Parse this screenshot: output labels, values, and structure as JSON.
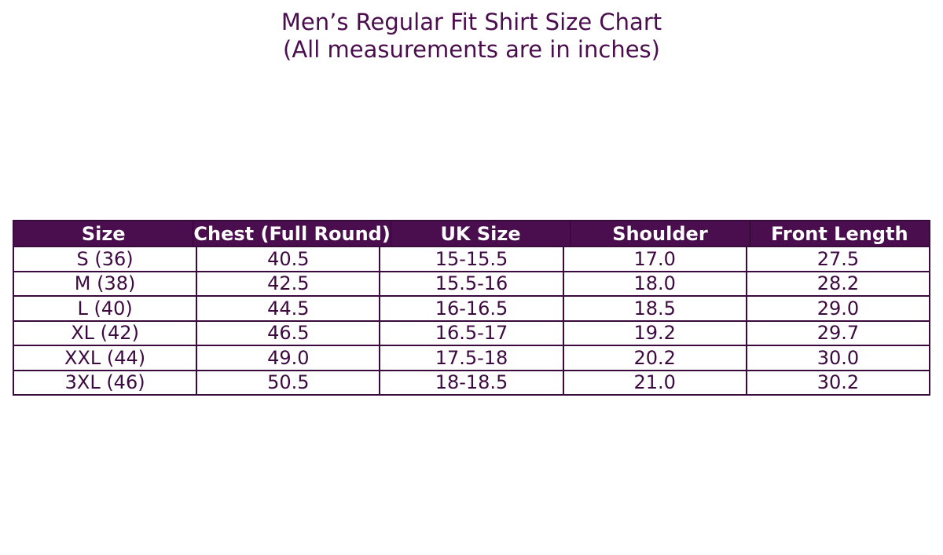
{
  "title": "Men’s Regular Fit Shirt Size Chart",
  "subtitle": "(All measurements are in inches)",
  "colors": {
    "header_bg": "#4a0e4e",
    "text": "#3d0a40",
    "header_text": "#ffffff"
  },
  "table": {
    "headers": [
      "Size",
      "Chest (Full Round)",
      "UK Size",
      "Shoulder",
      "Front Length"
    ],
    "rows": [
      [
        "S (36)",
        "40.5",
        "15-15.5",
        "17.0",
        "27.5"
      ],
      [
        "M (38)",
        "42.5",
        "15.5-16",
        "18.0",
        "28.2"
      ],
      [
        "L (40)",
        "44.5",
        "16-16.5",
        "18.5",
        "29.0"
      ],
      [
        "XL (42)",
        "46.5",
        "16.5-17",
        "19.2",
        "29.7"
      ],
      [
        "XXL (44)",
        "49.0",
        "17.5-18",
        "20.2",
        "30.0"
      ],
      [
        "3XL (46)",
        "50.5",
        "18-18.5",
        "21.0",
        "30.2"
      ]
    ]
  }
}
